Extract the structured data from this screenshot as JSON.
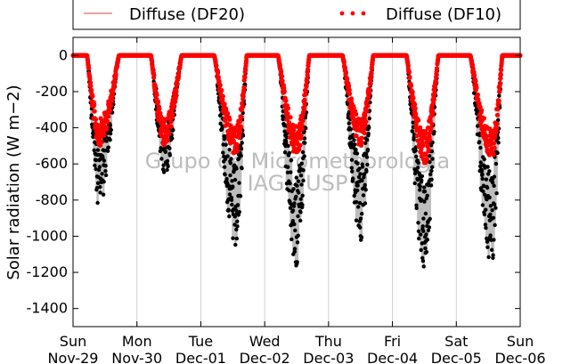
{
  "chart_data": {
    "type": "scatter",
    "ylabel": "Solar radiation (W m−2)",
    "ylim": [
      -1500,
      100
    ],
    "yticks": [
      0,
      -200,
      -400,
      -600,
      -800,
      -1000,
      -1200,
      -1400
    ],
    "xlim": [
      0,
      7
    ],
    "xticks": [
      {
        "x": 0,
        "day": "Sun",
        "date": "Nov-29"
      },
      {
        "x": 1,
        "day": "Mon",
        "date": "Nov-30"
      },
      {
        "x": 2,
        "day": "Tue",
        "date": "Dec-01"
      },
      {
        "x": 3,
        "day": "Wed",
        "date": "Dec-02"
      },
      {
        "x": 4,
        "day": "Thu",
        "date": "Dec-03"
      },
      {
        "x": 5,
        "day": "Fri",
        "date": "Dec-04"
      },
      {
        "x": 6,
        "day": "Sat",
        "date": "Dec-05"
      },
      {
        "x": 7,
        "day": "Sun",
        "date": "Dec-06"
      }
    ],
    "vertical_grid": true,
    "legend": {
      "placement": "top",
      "entries": [
        {
          "label": "Diffuse (DF20)",
          "style": "line",
          "color": "#f08080"
        },
        {
          "label": "Diffuse (DF10)",
          "style": "dots",
          "color": "#ff0000"
        }
      ]
    },
    "watermark": [
      "Grupo de Micrometeorologia",
      "IAG - USP"
    ],
    "days": [
      {
        "start": 0.22,
        "peak_time": 0.41,
        "end": 0.72,
        "df20_peak": -840,
        "df10_peak": -500
      },
      {
        "start": 1.22,
        "peak_time": 1.43,
        "end": 1.7,
        "df20_peak": -670,
        "df10_peak": -500
      },
      {
        "start": 2.21,
        "peak_time": 2.55,
        "end": 2.72,
        "df20_peak": -1100,
        "df10_peak": -560
      },
      {
        "start": 3.21,
        "peak_time": 3.5,
        "end": 3.7,
        "df20_peak": -1200,
        "df10_peak": -560
      },
      {
        "start": 4.22,
        "peak_time": 4.5,
        "end": 4.7,
        "df20_peak": -1030,
        "df10_peak": -500
      },
      {
        "start": 5.22,
        "peak_time": 5.5,
        "end": 5.72,
        "df20_peak": -1200,
        "df10_peak": -600
      },
      {
        "start": 6.22,
        "peak_time": 6.55,
        "end": 6.72,
        "df20_peak": -1160,
        "df10_peak": -580
      }
    ],
    "series": [
      {
        "name": "Diffuse (DF20)",
        "color": "#000000",
        "range_color": "#bdbdbd"
      },
      {
        "name": "Diffuse (DF10)",
        "color": "#ff0000"
      }
    ]
  }
}
